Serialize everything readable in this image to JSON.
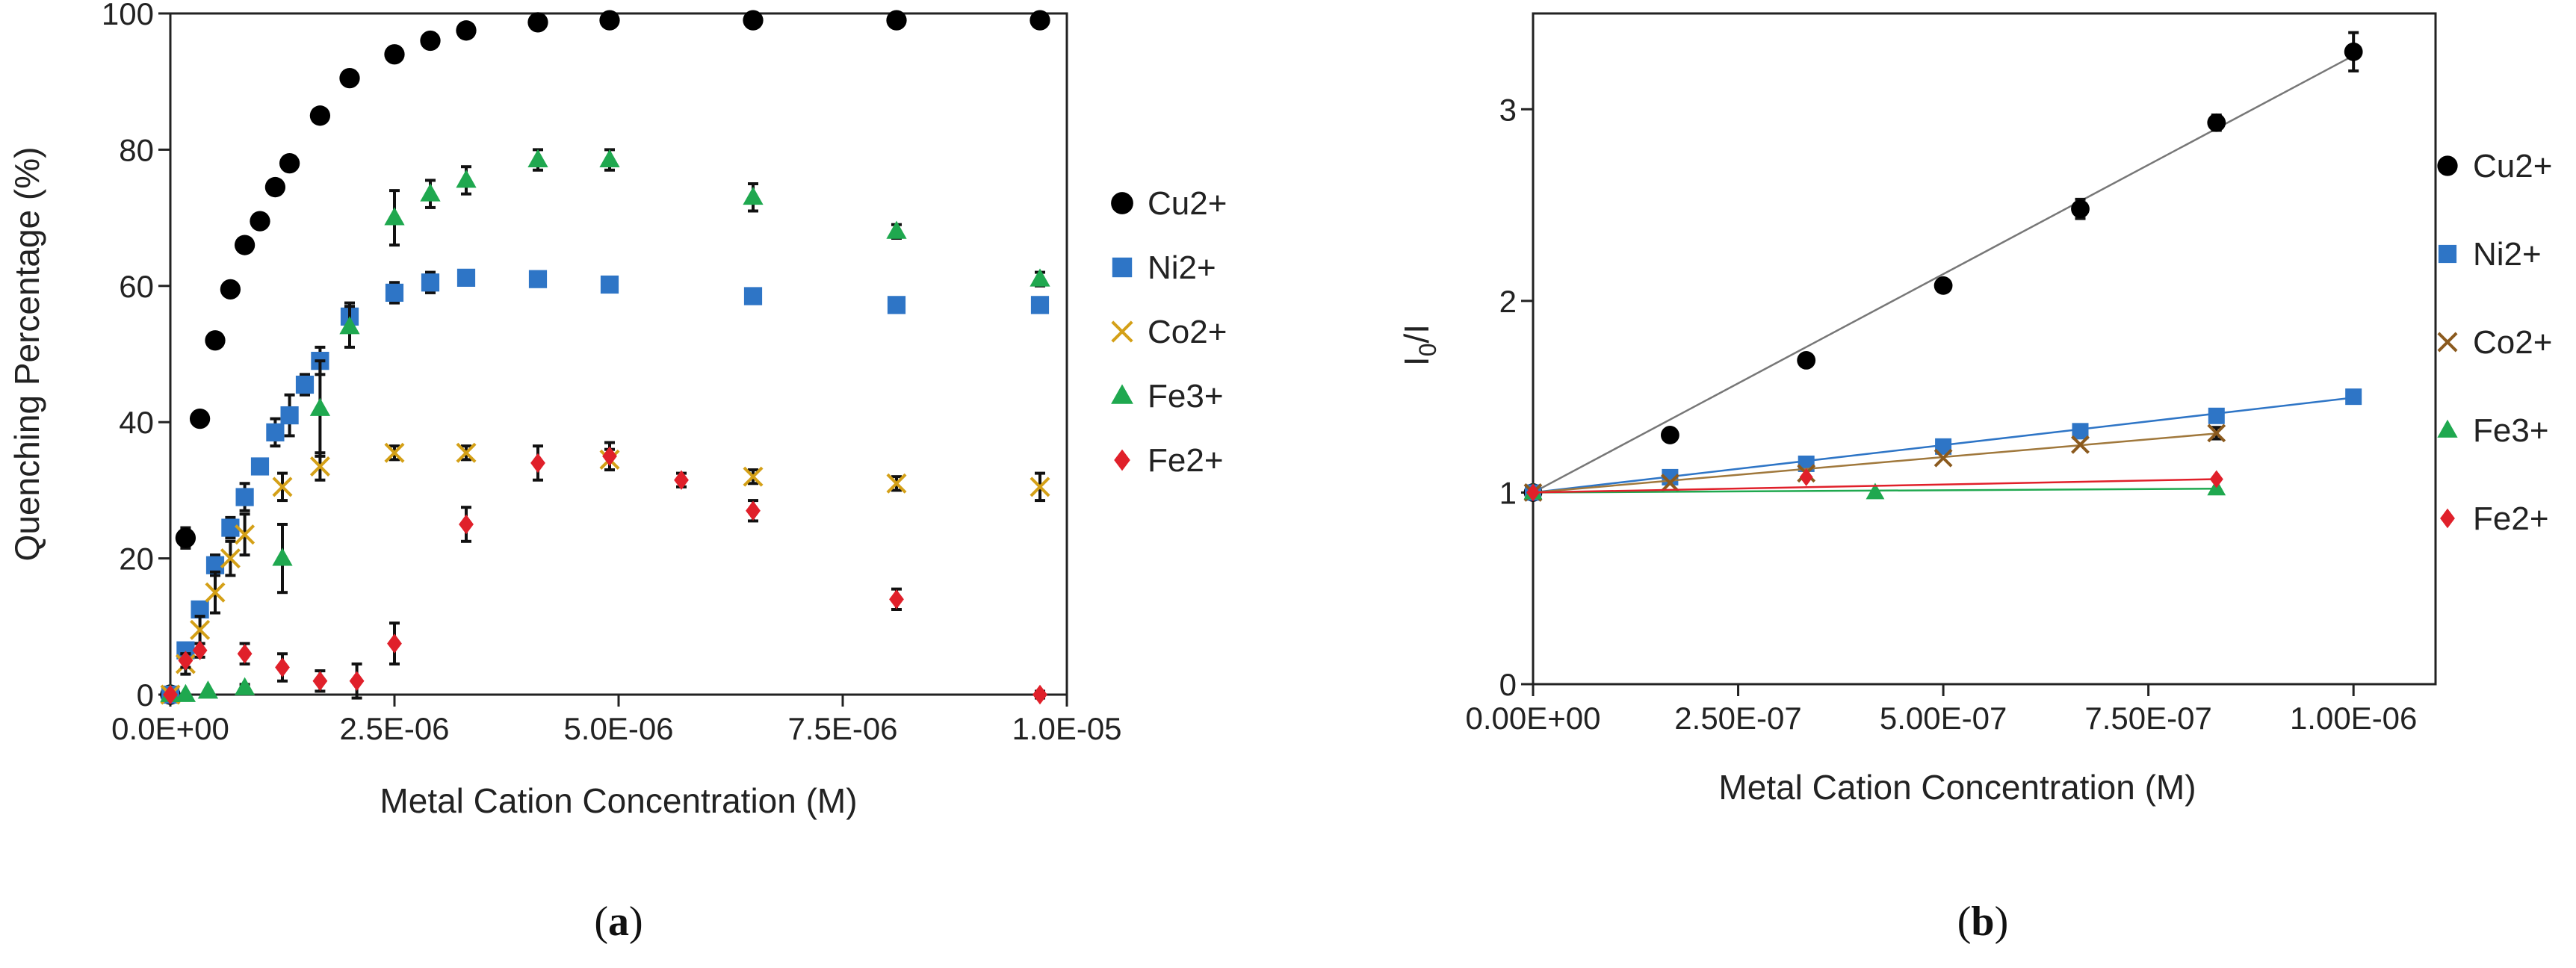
{
  "chart_data": [
    {
      "panel_label": "a",
      "type": "scatter",
      "xlabel": "Metal Cation Concentration (M)",
      "ylabel": "Quenching Percentage (%)",
      "xlim": [
        0,
        1e-05
      ],
      "ylim": [
        0,
        100
      ],
      "xticks": [
        0,
        2.5e-06,
        5e-06,
        7.5e-06,
        1e-05
      ],
      "xtick_labels": [
        "0.0E+00",
        "2.5E-06",
        "5.0E-06",
        "7.5E-06",
        "1.0E-05"
      ],
      "yticks": [
        0,
        20,
        40,
        60,
        80,
        100
      ],
      "ytick_labels": [
        "0",
        "20",
        "40",
        "60",
        "80",
        "100"
      ],
      "legend_position": "right",
      "series": [
        {
          "name": "Cu2+",
          "marker": "circle",
          "color": "#000000",
          "x": [
            0,
            1.7e-07,
            3.3e-07,
            5e-07,
            6.7e-07,
            8.3e-07,
            1e-06,
            1.17e-06,
            1.33e-06,
            1.67e-06,
            2e-06,
            2.5e-06,
            2.9e-06,
            3.3e-06,
            4.1e-06,
            4.9e-06,
            6.5e-06,
            8.1e-06,
            9.7e-06
          ],
          "y": [
            0,
            23,
            40.5,
            52,
            59.5,
            66,
            69.5,
            74.5,
            78,
            85,
            90.5,
            94,
            96,
            97.5,
            98.7,
            99,
            99,
            99,
            99
          ],
          "err": [
            0,
            1.5,
            0,
            0,
            0,
            0,
            0,
            0,
            0,
            0,
            0,
            0,
            0,
            0,
            0,
            0,
            0,
            0,
            0
          ]
        },
        {
          "name": "Ni2+",
          "marker": "square",
          "color": "#2e75c6",
          "x": [
            0,
            1.7e-07,
            3.3e-07,
            5e-07,
            6.7e-07,
            8.3e-07,
            1e-06,
            1.17e-06,
            1.33e-06,
            1.5e-06,
            1.67e-06,
            2e-06,
            2.5e-06,
            2.9e-06,
            3.3e-06,
            4.1e-06,
            4.9e-06,
            6.5e-06,
            8.1e-06,
            9.7e-06
          ],
          "y": [
            0,
            6.5,
            12.5,
            19,
            24.5,
            29,
            33.5,
            38.5,
            41,
            45.5,
            49,
            55.5,
            59,
            60.5,
            61.2,
            61,
            60.2,
            58.5,
            57.2,
            57.2
          ],
          "err": [
            0,
            1,
            1,
            1.5,
            1.5,
            2,
            1,
            2,
            3,
            1.5,
            2,
            2,
            1.5,
            1.5,
            0.5,
            0,
            0,
            0,
            0,
            0
          ]
        },
        {
          "name": "Co2+",
          "marker": "cross",
          "color": "#d4a017",
          "x": [
            0,
            1.7e-07,
            3.3e-07,
            5e-07,
            6.7e-07,
            8.3e-07,
            1.25e-06,
            1.67e-06,
            2.5e-06,
            3.3e-06,
            4.9e-06,
            6.5e-06,
            8.1e-06,
            9.7e-06
          ],
          "y": [
            0,
            4.5,
            9.5,
            15,
            20,
            23.5,
            30.5,
            33.5,
            35.5,
            35.5,
            34.5,
            32,
            31,
            30.5
          ],
          "err": [
            0,
            1.5,
            2,
            3,
            2.5,
            3,
            2,
            2,
            1,
            1,
            1.5,
            1,
            1,
            2
          ]
        },
        {
          "name": "Fe3+",
          "marker": "triangle",
          "color": "#1fa84f",
          "x": [
            0,
            1.7e-07,
            4.2e-07,
            8.3e-07,
            1.25e-06,
            1.67e-06,
            2e-06,
            2.5e-06,
            2.9e-06,
            3.3e-06,
            4.1e-06,
            4.9e-06,
            6.5e-06,
            8.1e-06,
            9.7e-06
          ],
          "y": [
            0,
            0,
            0.5,
            1,
            20,
            42,
            54,
            70,
            73.5,
            75.5,
            78.5,
            78.5,
            73,
            68,
            61
          ],
          "err": [
            0,
            0,
            0,
            0.5,
            5,
            7,
            3,
            4,
            2,
            2,
            1.5,
            1.5,
            2,
            1,
            1
          ]
        },
        {
          "name": "Fe2+",
          "marker": "diamond",
          "color": "#e0202a",
          "x": [
            0,
            1.7e-07,
            3.3e-07,
            8.3e-07,
            1.25e-06,
            1.67e-06,
            2.08e-06,
            2.5e-06,
            3.3e-06,
            4.1e-06,
            4.9e-06,
            5.7e-06,
            6.5e-06,
            8.1e-06,
            9.7e-06
          ],
          "y": [
            0,
            5,
            6.5,
            6,
            4,
            2,
            2,
            7.5,
            25,
            34,
            35,
            31.5,
            27,
            14,
            0
          ],
          "err": [
            0,
            1,
            1,
            1.5,
            2,
            1.5,
            2.5,
            3,
            2.5,
            2.5,
            2,
            1,
            1.5,
            1.5,
            0.5
          ]
        }
      ]
    },
    {
      "panel_label": "b",
      "type": "scatter",
      "xlabel": "Metal Cation Concentration (M)",
      "ylabel_main": "I",
      "ylabel_sub": "0",
      "ylabel_rest": "/I",
      "xlim": [
        0,
        1.1e-06
      ],
      "ylim": [
        0,
        3.5
      ],
      "xticks": [
        0,
        2.5e-07,
        5e-07,
        7.5e-07,
        1e-06
      ],
      "xtick_labels": [
        "0.00E+00",
        "2.50E-07",
        "5.00E-07",
        "7.50E-07",
        "1.00E-06"
      ],
      "yticks": [
        0,
        1,
        2,
        3
      ],
      "ytick_labels": [
        "0",
        "1",
        "2",
        "3"
      ],
      "legend_position": "right",
      "series": [
        {
          "name": "Cu2+",
          "marker": "circle",
          "color": "#000000",
          "fit_color": "#777777",
          "x": [
            0,
            1.67e-07,
            3.33e-07,
            5e-07,
            6.67e-07,
            8.33e-07,
            1e-06
          ],
          "y": [
            1,
            1.3,
            1.69,
            2.08,
            2.48,
            2.93,
            3.3
          ],
          "err": [
            0,
            0,
            0,
            0,
            0.05,
            0.04,
            0.1
          ],
          "fit": {
            "slope": 2280000.0,
            "intercept": 1,
            "x_end": 1e-06
          }
        },
        {
          "name": "Ni2+",
          "marker": "square",
          "color": "#2e75c6",
          "fit_color": "#2e75c6",
          "x": [
            0,
            1.67e-07,
            3.33e-07,
            5e-07,
            6.67e-07,
            8.33e-07,
            1e-06
          ],
          "y": [
            1,
            1.08,
            1.15,
            1.24,
            1.32,
            1.4,
            1.5
          ],
          "err": [
            0,
            0,
            0,
            0,
            0,
            0.03,
            0
          ],
          "fit": {
            "slope": 495000.0,
            "intercept": 1,
            "x_end": 1e-06
          }
        },
        {
          "name": "Co2+",
          "marker": "cross",
          "color": "#8b5a1e",
          "fit_color": "#a0783c",
          "x": [
            0,
            1.67e-07,
            3.33e-07,
            5e-07,
            6.67e-07,
            8.33e-07
          ],
          "y": [
            1,
            1.05,
            1.1,
            1.18,
            1.25,
            1.31
          ],
          "err": [
            0,
            0,
            0,
            0,
            0,
            0.03
          ],
          "fit": {
            "slope": 370000.0,
            "intercept": 1,
            "x_end": 8.33e-07
          }
        },
        {
          "name": "Fe3+",
          "marker": "triangle",
          "color": "#1fa84f",
          "fit_color": "#1fa84f",
          "x": [
            0,
            4.17e-07,
            8.33e-07
          ],
          "y": [
            1,
            1.0,
            1.02
          ],
          "err": [
            0,
            0,
            0
          ],
          "fit": {
            "slope": 24000.0,
            "intercept": 1,
            "x_end": 8.33e-07
          }
        },
        {
          "name": "Fe2+",
          "marker": "diamond",
          "color": "#e0202a",
          "fit_color": "#e0202a",
          "x": [
            0,
            3.33e-07,
            8.33e-07
          ],
          "y": [
            1,
            1.08,
            1.07
          ],
          "err": [
            0,
            0,
            0
          ],
          "fit": {
            "slope": 84000.0,
            "intercept": 1,
            "x_end": 8.33e-07
          }
        }
      ]
    }
  ]
}
